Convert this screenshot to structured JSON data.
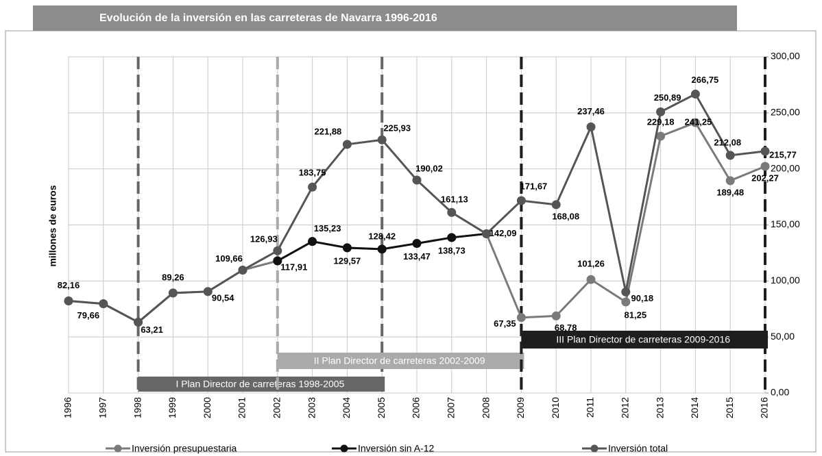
{
  "chart_data": {
    "type": "line",
    "title": "Evolución de la inversión en las carreteras de Navarra 1996-2016",
    "y_axis_label": "millones de euros",
    "categories": [
      "1996",
      "1997",
      "1998",
      "1999",
      "2000",
      "2001",
      "2002",
      "2003",
      "2004",
      "2005",
      "2006",
      "2007",
      "2008",
      "2009",
      "2010",
      "2011",
      "2012",
      "2013",
      "2014",
      "2015",
      "2016"
    ],
    "ylim": [
      0,
      300
    ],
    "yticks": [
      {
        "value": 0,
        "label": "0,00"
      },
      {
        "value": 50,
        "label": "50,00"
      },
      {
        "value": 100,
        "label": "100,00"
      },
      {
        "value": 150,
        "label": "150,00"
      },
      {
        "value": 200,
        "label": "200,00"
      },
      {
        "value": 250,
        "label": "250,00"
      },
      {
        "value": 300,
        "label": "300,00"
      }
    ],
    "grid": true,
    "legend_position": "bottom",
    "series": [
      {
        "name": "Inversión presupuestaria",
        "color": "#7a7a7a",
        "values": [
          82.16,
          79.66,
          63.21,
          89.26,
          90.54,
          109.66,
          117.91,
          135.23,
          129.57,
          128.42,
          133.47,
          138.73,
          142.09,
          67.35,
          68.78,
          101.26,
          81.25,
          229.18,
          241.25,
          189.48,
          202.27
        ],
        "value_labels": [
          null,
          null,
          null,
          null,
          null,
          null,
          null,
          null,
          null,
          null,
          null,
          null,
          null,
          "67,35",
          "68,78",
          "101,26",
          "81,25",
          "229,18",
          "241,25",
          "189,48",
          "202,27"
        ]
      },
      {
        "name": "Inversión sin A-12",
        "color": "#111111",
        "values": [
          null,
          null,
          null,
          null,
          null,
          null,
          117.91,
          135.23,
          129.57,
          128.42,
          133.47,
          138.73,
          142.09,
          null,
          null,
          null,
          null,
          null,
          null,
          null,
          null
        ],
        "value_labels": [
          null,
          null,
          null,
          null,
          null,
          null,
          "117,91",
          "135,23",
          "129,57",
          "128,42",
          "133,47",
          "138,73",
          "142,09",
          null,
          null,
          null,
          null,
          null,
          null,
          null,
          null
        ]
      },
      {
        "name": "Inversión total",
        "color": "#555555",
        "values": [
          82.16,
          79.66,
          63.21,
          89.26,
          90.54,
          109.66,
          126.93,
          183.75,
          221.88,
          225.93,
          190.02,
          161.13,
          142.09,
          171.67,
          168.08,
          237.46,
          90.18,
          250.89,
          266.75,
          212.08,
          215.77
        ],
        "value_labels": [
          "82,16",
          "79,66",
          "63,21",
          "89,26",
          "90,54",
          "109,66",
          "126,93",
          "183,75",
          "221,88",
          "225,93",
          "190,02",
          "161,13",
          null,
          "171,67",
          "168,08",
          "237,46",
          "90,18",
          "250,89",
          "266,75",
          "212,08",
          "215,77"
        ]
      }
    ],
    "annotations": [
      {
        "text": "I Plan Director de carreteras 1998-2005",
        "start": "1998",
        "end": "2005",
        "color": "#666666",
        "text_color": "#ffffff"
      },
      {
        "text": "II Plan Director de carreteras 2002-2009",
        "start": "2002",
        "end": "2009",
        "color": "#aaaaaa",
        "text_color": "#ffffff"
      },
      {
        "text": "III Plan Director de carreteras 2009-2016",
        "start": "2009",
        "end": "2016",
        "color": "#1e1e1e",
        "text_color": "#ffffff"
      }
    ]
  }
}
